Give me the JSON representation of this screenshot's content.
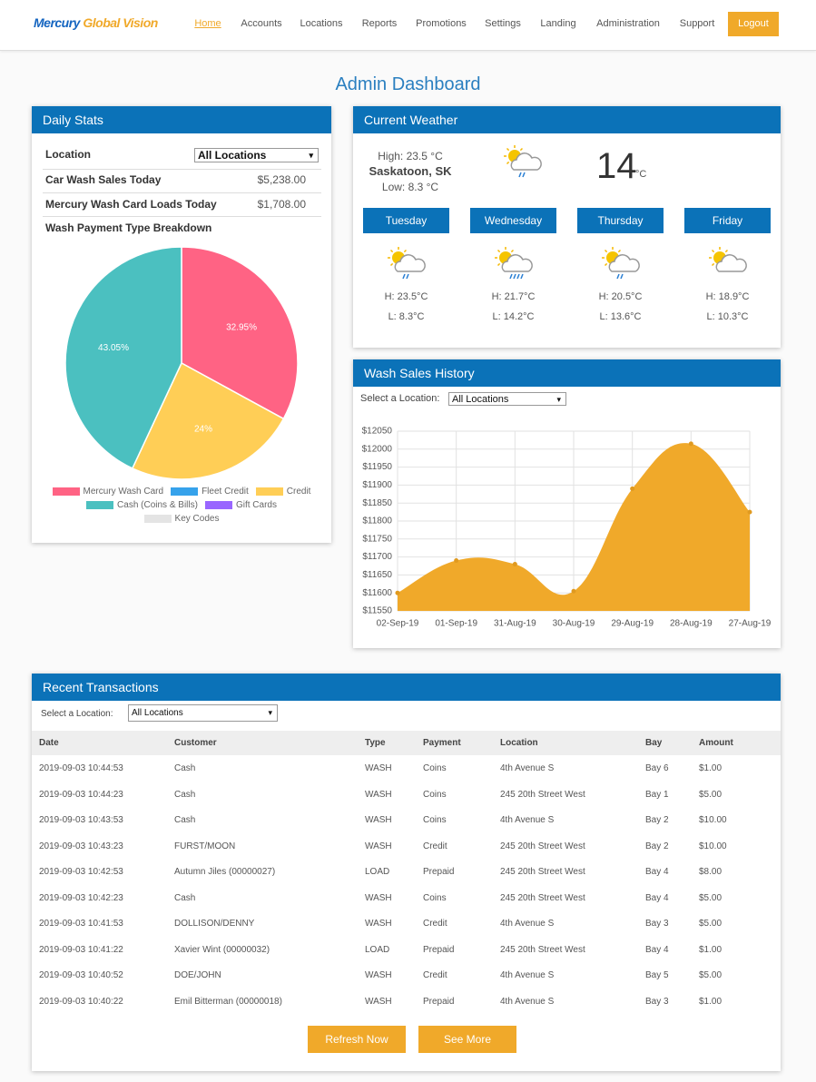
{
  "header": {
    "logo": {
      "first": "Mercury",
      "second": "Global Vision"
    },
    "nav": [
      "Home",
      "Accounts",
      "Locations",
      "Reports",
      "Promotions",
      "Settings",
      "Landing",
      "Administration",
      "Support"
    ],
    "logout": "Logout"
  },
  "page_title": "Admin Dashboard",
  "daily_stats": {
    "title": "Daily Stats",
    "location_label": "Location",
    "location_select": "All Locations",
    "rows": [
      [
        "Car Wash Sales Today",
        "$5,238.00"
      ],
      [
        "Mercury Wash Card Loads Today",
        "$1,708.00"
      ]
    ]
  },
  "weather": {
    "title": "Current Weather",
    "high": "High: 23.5 °C",
    "city": "Saskatoon, SK",
    "low": "Low: 8.3 °C",
    "temp": "14",
    "unit": "°C",
    "forecast": [
      {
        "day": "Tuesday",
        "high": "H: 23.5°C",
        "low": "L: 8.3°C"
      },
      {
        "day": "Wednesday",
        "high": "H: 21.7°C",
        "low": "L: 14.2°C"
      },
      {
        "day": "Thursday",
        "high": "H: 20.5°C",
        "low": "L: 13.6°C"
      },
      {
        "day": "Friday",
        "high": "H: 18.9°C",
        "low": "L: 10.3°C"
      }
    ]
  },
  "wash_sales": {
    "select_label": "Select a Location:",
    "select": "All Locations"
  },
  "chart_data": [
    {
      "type": "pie",
      "title": "Wash Payment Type Breakdown",
      "categories": [
        "Mercury Wash Card",
        "Fleet Credit",
        "Credit",
        "Cash (Coins & Bills)",
        "Gift Cards",
        "Key Codes"
      ],
      "values": [
        32.95,
        0,
        24,
        43.05,
        0,
        0
      ],
      "value_labels": [
        "32.95%",
        null,
        "24%",
        "43.05%",
        null,
        null
      ],
      "colors": [
        "#ff6384",
        "#36a2eb",
        "#ffce56",
        "#4bc0c0",
        "#9966ff",
        "#e4e4e4"
      ]
    },
    {
      "type": "area",
      "title": "Wash Sales History",
      "x": [
        "02-Sep-19",
        "01-Sep-19",
        "31-Aug-19",
        "30-Aug-19",
        "29-Aug-19",
        "28-Aug-19",
        "27-Aug-19"
      ],
      "values": [
        11600,
        11690,
        11680,
        11605,
        11890,
        12015,
        11825
      ],
      "ylim": [
        11550,
        12050
      ],
      "yticks": [
        {
          "value": 11550,
          "label": "$11550"
        },
        {
          "value": 11600,
          "label": "$11600"
        },
        {
          "value": 11650,
          "label": "$11650"
        },
        {
          "value": 11700,
          "label": "$11700"
        },
        {
          "value": 11750,
          "label": "$11750"
        },
        {
          "value": 11800,
          "label": "$11800"
        },
        {
          "value": 11850,
          "label": "$11850"
        },
        {
          "value": 11900,
          "label": "$11900"
        },
        {
          "value": 11950,
          "label": "$11950"
        },
        {
          "value": 12000,
          "label": "$12000"
        },
        {
          "value": 12050,
          "label": "$12050"
        }
      ],
      "color": "#f0a92a",
      "grid": true
    }
  ],
  "transactions": {
    "title": "Recent Transactions",
    "select_label": "Select a Location:",
    "select": "All Locations",
    "headers": [
      "Date",
      "Customer",
      "Type",
      "Payment",
      "Location",
      "Bay",
      "Amount"
    ],
    "rows": [
      [
        "2019-09-03 10:44:53",
        "Cash",
        "WASH",
        "Coins",
        "4th Avenue S",
        "Bay 6",
        "$1.00"
      ],
      [
        "2019-09-03 10:44:23",
        "Cash",
        "WASH",
        "Coins",
        "245 20th Street West",
        "Bay 1",
        "$5.00"
      ],
      [
        "2019-09-03 10:43:53",
        "Cash",
        "WASH",
        "Coins",
        "4th Avenue S",
        "Bay 2",
        "$10.00"
      ],
      [
        "2019-09-03 10:43:23",
        "FURST/MOON",
        "WASH",
        "Credit",
        "245 20th Street West",
        "Bay 2",
        "$10.00"
      ],
      [
        "2019-09-03 10:42:53",
        "Autumn Jiles (00000027)",
        "LOAD",
        "Prepaid",
        "245 20th Street West",
        "Bay 4",
        "$8.00"
      ],
      [
        "2019-09-03 10:42:23",
        "Cash",
        "WASH",
        "Coins",
        "245 20th Street West",
        "Bay 4",
        "$5.00"
      ],
      [
        "2019-09-03 10:41:53",
        "DOLLISON/DENNY",
        "WASH",
        "Credit",
        "4th Avenue S",
        "Bay 3",
        "$5.00"
      ],
      [
        "2019-09-03 10:41:22",
        "Xavier Wint (00000032)",
        "LOAD",
        "Prepaid",
        "245 20th Street West",
        "Bay 4",
        "$1.00"
      ],
      [
        "2019-09-03 10:40:52",
        "DOE/JOHN",
        "WASH",
        "Credit",
        "4th Avenue S",
        "Bay 5",
        "$5.00"
      ],
      [
        "2019-09-03 10:40:22",
        "Emil Bitterman (00000018)",
        "WASH",
        "Prepaid",
        "4th Avenue S",
        "Bay 3",
        "$1.00"
      ]
    ],
    "buttons": [
      "Refresh Now",
      "See More"
    ]
  }
}
